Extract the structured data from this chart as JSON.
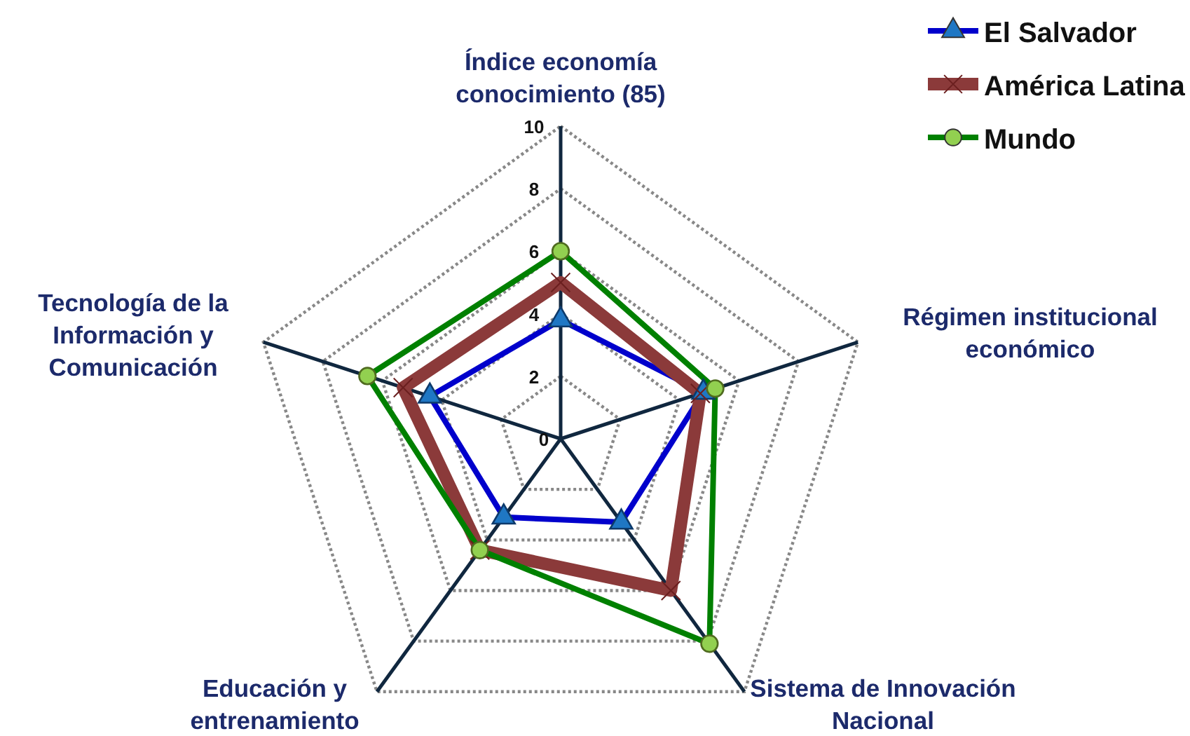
{
  "chart_data": {
    "type": "radar",
    "categories": [
      "Índice economía conocimiento (85)",
      "Régimen institucional económico",
      "Sistema de Innovación Nacional",
      "Educación y entrenamiento",
      "Tecnología de la Información y Comunicación"
    ],
    "ylim": [
      0,
      10
    ],
    "yticks": [
      0,
      2,
      4,
      6,
      8,
      10
    ],
    "grid": true,
    "legend": "top right",
    "series": [
      {
        "name": "El Salvador",
        "color": "#0000cc",
        "marker": "triangle",
        "values": [
          3.8,
          4.8,
          3.3,
          3.1,
          4.4
        ]
      },
      {
        "name": "América Latina",
        "color": "#8b3a3a",
        "marker": "cross",
        "values": [
          5.0,
          4.7,
          6.0,
          4.4,
          5.3
        ]
      },
      {
        "name": "Mundo",
        "color": "#008000",
        "marker": "circle",
        "values": [
          6.0,
          5.2,
          8.1,
          4.4,
          6.5
        ]
      }
    ]
  }
}
